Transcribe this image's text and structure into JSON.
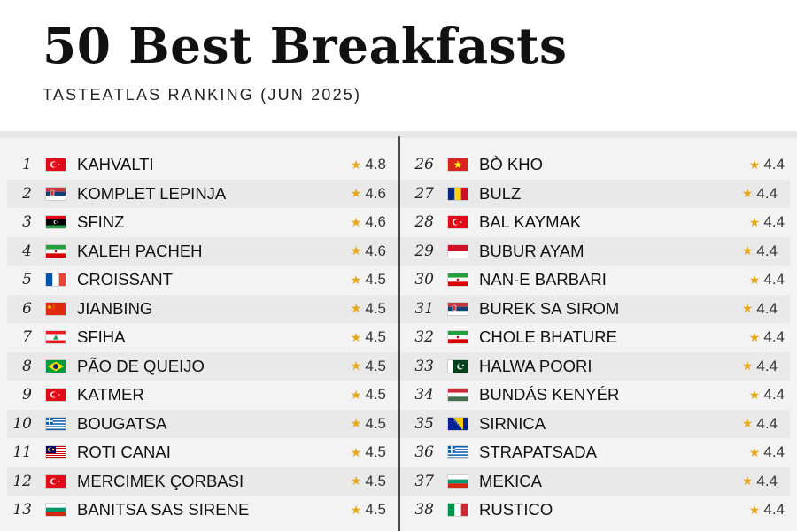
{
  "header": {
    "title": "50 Best Breakfasts",
    "subtitle": "TASTEATLAS RANKING (JUN 2025)"
  },
  "icons": {
    "rating": "star-icon"
  },
  "colors": {
    "star": "#e6a817",
    "divider": "#4a4a4a",
    "row_alt": "#e9e9e9"
  },
  "left_items": [
    {
      "rank": "1",
      "name": "KAHVALTI",
      "flag": "turkey",
      "rating": "4.8"
    },
    {
      "rank": "2",
      "name": "KOMPLET LEPINJA",
      "flag": "serbia",
      "rating": "4.6"
    },
    {
      "rank": "3",
      "name": "SFINZ",
      "flag": "libya",
      "rating": "4.6"
    },
    {
      "rank": "4",
      "name": "KALEH PACHEH",
      "flag": "iran",
      "rating": "4.6"
    },
    {
      "rank": "5",
      "name": "CROISSANT",
      "flag": "france",
      "rating": "4.5"
    },
    {
      "rank": "6",
      "name": "JIANBING",
      "flag": "china",
      "rating": "4.5"
    },
    {
      "rank": "7",
      "name": "SFIHA",
      "flag": "lebanon",
      "rating": "4.5"
    },
    {
      "rank": "8",
      "name": "PÃO DE QUEIJO",
      "flag": "brazil",
      "rating": "4.5"
    },
    {
      "rank": "9",
      "name": "KATMER",
      "flag": "turkey",
      "rating": "4.5"
    },
    {
      "rank": "10",
      "name": "BOUGATSA",
      "flag": "greece",
      "rating": "4.5"
    },
    {
      "rank": "11",
      "name": "ROTI CANAI",
      "flag": "malaysia",
      "rating": "4.5"
    },
    {
      "rank": "12",
      "name": "MERCIMEK ÇORBASI",
      "flag": "turkey",
      "rating": "4.5"
    },
    {
      "rank": "13",
      "name": "BANITSA SAS SIRENE",
      "flag": "bulgaria",
      "rating": "4.5"
    }
  ],
  "right_items": [
    {
      "rank": "26",
      "name": "BÒ KHO",
      "flag": "vietnam",
      "rating": "4.4"
    },
    {
      "rank": "27",
      "name": "BULZ",
      "flag": "romania",
      "rating": "4.4"
    },
    {
      "rank": "28",
      "name": "BAL KAYMAK",
      "flag": "turkey",
      "rating": "4.4"
    },
    {
      "rank": "29",
      "name": "BUBUR AYAM",
      "flag": "indonesia",
      "rating": "4.4"
    },
    {
      "rank": "30",
      "name": "NAN-E BARBARI",
      "flag": "iran",
      "rating": "4.4"
    },
    {
      "rank": "31",
      "name": "BUREK SA SIROM",
      "flag": "serbia",
      "rating": "4.4"
    },
    {
      "rank": "32",
      "name": "CHOLE BHATURE",
      "flag": "iran",
      "rating": "4.4"
    },
    {
      "rank": "33",
      "name": "HALWA POORI",
      "flag": "pakistan",
      "rating": "4.4"
    },
    {
      "rank": "34",
      "name": "BUNDÁS KENYÉR",
      "flag": "hungary",
      "rating": "4.4"
    },
    {
      "rank": "35",
      "name": "SIRNICA",
      "flag": "bosnia",
      "rating": "4.4"
    },
    {
      "rank": "36",
      "name": "STRAPATSADA",
      "flag": "greece",
      "rating": "4.4"
    },
    {
      "rank": "37",
      "name": "MEKICA",
      "flag": "bulgaria",
      "rating": "4.4"
    },
    {
      "rank": "38",
      "name": "RUSTICO",
      "flag": "italy",
      "rating": "4.4"
    }
  ]
}
